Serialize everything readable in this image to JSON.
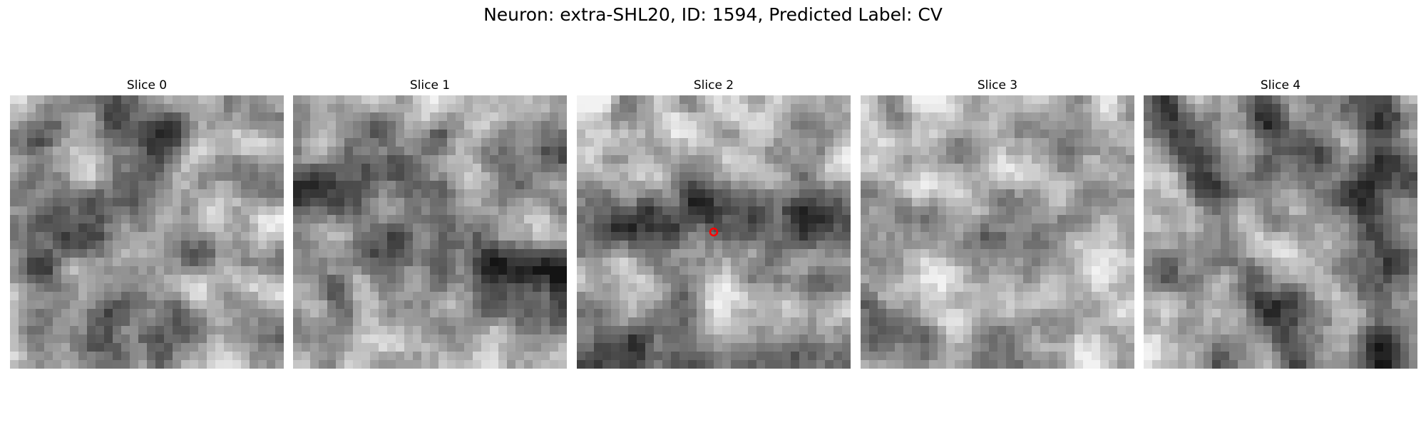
{
  "figure": {
    "title": "Neuron: extra-SHL20, ID: 1594, Predicted Label: CV"
  },
  "panels": [
    {
      "title": "Slice 0"
    },
    {
      "title": "Slice 1"
    },
    {
      "title": "Slice 2"
    },
    {
      "title": "Slice 3"
    },
    {
      "title": "Slice 4"
    }
  ],
  "marker": {
    "panel": 2,
    "color": "#ff0000",
    "shape": "open-circle"
  },
  "colors": {
    "colormap": "gray"
  }
}
